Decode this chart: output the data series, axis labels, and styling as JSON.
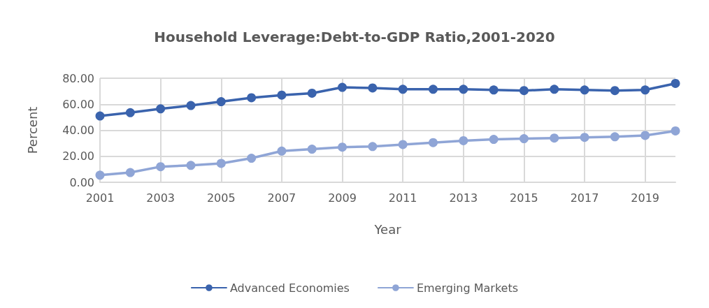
{
  "chart_data": {
    "type": "line",
    "title": "Household Leverage:Debt-to-GDP Ratio,2001-2020",
    "xlabel": "Year",
    "ylabel": "Percent",
    "categories": [
      "2001",
      null,
      "2003",
      null,
      "2005",
      null,
      "2007",
      null,
      "2009",
      null,
      "2011",
      null,
      "2013",
      null,
      "2015",
      null,
      "2017",
      null,
      "2019",
      null
    ],
    "series": [
      {
        "name": "Advanced Economies",
        "color": "#3a63ad",
        "values": [
          51,
          53.5,
          56.5,
          59,
          62,
          65,
          67,
          68.5,
          73,
          72.5,
          71.5,
          71.5,
          71.5,
          71,
          70.5,
          71.5,
          71,
          70.5,
          71,
          76
        ]
      },
      {
        "name": "Emerging Markets",
        "color": "#8fa5d6",
        "values": [
          5.5,
          7.5,
          12,
          13,
          14.5,
          18.5,
          24,
          25.5,
          27,
          27.5,
          29,
          30.5,
          32,
          33,
          33.5,
          34,
          34.5,
          35,
          36,
          39.5
        ]
      }
    ],
    "ylim": [
      0,
      80
    ],
    "yticks": [
      {
        "value": 0,
        "label": "0.00"
      },
      {
        "value": 20,
        "label": "20.00"
      },
      {
        "value": 40,
        "label": "40.00"
      },
      {
        "value": 60,
        "label": "60.00"
      },
      {
        "value": 80,
        "label": "80.00"
      }
    ],
    "grid": true,
    "legend": "bottom",
    "marker": "circle",
    "line_style": "solid"
  }
}
